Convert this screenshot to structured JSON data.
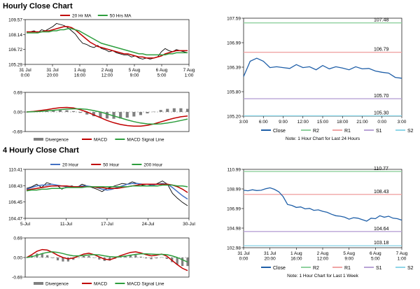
{
  "titles": {
    "hourly": "Hourly Close Chart",
    "four_hourly": "4 Hourly Close Chart"
  },
  "colors": {
    "price": "#000000",
    "ma_red": "#c00000",
    "ma_green": "#2e9e3e",
    "ma_blue": "#4472c4",
    "close_blue": "#1f5fa8",
    "r2": "#8fd19e",
    "r1": "#f0a5a5",
    "s1": "#b9a3d6",
    "s2": "#8fd6e8",
    "divergence": "#808080"
  },
  "chart_data": [
    {
      "id": "hourly-price",
      "type": "line",
      "legend": [
        "20 Hr MA",
        "50 Hrs MA"
      ],
      "ylim": [
        105.29,
        109.57
      ],
      "y_ticks": [
        "109.57",
        "108.14",
        "106.72",
        "105.29"
      ],
      "x_ticks": [
        "31 Jul\n0:00",
        "31 Jul\n20:00",
        "1 Aug\n16:00",
        "2 Aug\n12:00",
        "5 Aug\n9:00",
        "6 Aug\n5:00",
        "7 Aug\n1:00"
      ],
      "series": [
        {
          "name": "Close",
          "values": [
            108.4,
            108.4,
            108.5,
            108.3,
            108.6,
            108.5,
            108.7,
            108.9,
            109.2,
            109.1,
            109.0,
            108.8,
            108.5,
            108.2,
            107.7,
            107.3,
            107.2,
            107.0,
            106.9,
            107.1,
            106.8,
            106.7,
            106.5,
            106.6,
            106.4,
            106.3,
            106.2,
            106.2,
            106.0,
            106.1,
            105.9,
            105.8,
            105.9,
            105.8,
            105.9,
            106.0,
            106.5,
            106.8,
            106.6,
            106.5,
            106.7,
            106.6,
            106.5,
            106.4
          ]
        },
        {
          "name": "20 Hr MA",
          "values": [
            108.4,
            108.4,
            108.4,
            108.4,
            108.4,
            108.5,
            108.5,
            108.6,
            108.7,
            108.8,
            108.9,
            108.9,
            108.8,
            108.6,
            108.3,
            108.0,
            107.7,
            107.4,
            107.2,
            107.0,
            106.9,
            106.8,
            106.7,
            106.6,
            106.5,
            106.4,
            106.3,
            106.3,
            106.2,
            106.1,
            106.0,
            106.0,
            105.9,
            105.9,
            105.9,
            106.0,
            106.1,
            106.3,
            106.4,
            106.5,
            106.6,
            106.6,
            106.6,
            106.6
          ]
        },
        {
          "name": "50 Hrs MA",
          "values": [
            108.3,
            108.3,
            108.3,
            108.3,
            108.4,
            108.4,
            108.4,
            108.5,
            108.5,
            108.6,
            108.6,
            108.7,
            108.7,
            108.6,
            108.5,
            108.3,
            108.1,
            107.9,
            107.7,
            107.5,
            107.3,
            107.2,
            107.1,
            107.0,
            106.9,
            106.8,
            106.7,
            106.6,
            106.5,
            106.4,
            106.3,
            106.3,
            106.2,
            106.2,
            106.2,
            106.2,
            106.2,
            106.2,
            106.3,
            106.3,
            106.4,
            106.4,
            106.4,
            106.4
          ]
        }
      ]
    },
    {
      "id": "hourly-macd",
      "type": "line",
      "legend": [
        "Divergence",
        "MACD",
        "MACD Signal Line"
      ],
      "ylim": [
        -0.69,
        0.69
      ],
      "y_ticks": [
        "0.69",
        "0.00",
        "-0.69"
      ],
      "series": [
        {
          "name": "MACD",
          "values": [
            0.0,
            0.02,
            0.05,
            0.08,
            0.12,
            0.15,
            0.16,
            0.14,
            0.08,
            0.0,
            -0.1,
            -0.2,
            -0.3,
            -0.38,
            -0.44,
            -0.48,
            -0.5,
            -0.5,
            -0.47,
            -0.42,
            -0.35,
            -0.28,
            -0.22,
            -0.17,
            -0.14
          ]
        },
        {
          "name": "MACD Signal Line",
          "values": [
            0.0,
            0.01,
            0.02,
            0.04,
            0.06,
            0.08,
            0.1,
            0.11,
            0.11,
            0.09,
            0.05,
            0.0,
            -0.07,
            -0.14,
            -0.21,
            -0.28,
            -0.34,
            -0.39,
            -0.42,
            -0.43,
            -0.42,
            -0.39,
            -0.35,
            -0.3,
            -0.25
          ]
        },
        {
          "name": "Divergence",
          "values": [
            0.0,
            0.01,
            0.03,
            0.04,
            0.06,
            0.07,
            0.06,
            0.03,
            -0.03,
            -0.09,
            -0.15,
            -0.2,
            -0.23,
            -0.24,
            -0.23,
            -0.2,
            -0.16,
            -0.11,
            -0.05,
            0.01,
            0.07,
            0.11,
            0.13,
            0.13,
            0.11
          ]
        }
      ]
    },
    {
      "id": "hourly-levels",
      "type": "line",
      "ylim": [
        105.29,
        107.59
      ],
      "y_ticks": [
        "107.59",
        "106.99",
        "106.39",
        "105.80",
        "105.20"
      ],
      "x_ticks": [
        "3:00",
        "6:00",
        "9:00",
        "12:00",
        "15:00",
        "18:00",
        "21:00",
        "0:00",
        "3:00"
      ],
      "levels": [
        {
          "name": "R2",
          "value": 107.48,
          "label": "107.48"
        },
        {
          "name": "R1",
          "value": 106.79,
          "label": "106.79"
        },
        {
          "name": "S1",
          "value": 105.7,
          "label": "105.70"
        },
        {
          "name": "S2",
          "value": 105.3,
          "label": "105.30"
        }
      ],
      "series": [
        {
          "name": "Close",
          "values": [
            106.22,
            106.58,
            106.65,
            106.58,
            106.43,
            106.45,
            106.43,
            106.41,
            106.5,
            106.43,
            106.45,
            106.38,
            106.48,
            106.4,
            106.45,
            106.42,
            106.38,
            106.45,
            106.4,
            106.41,
            106.35,
            106.32,
            106.3,
            106.2,
            106.18
          ]
        }
      ],
      "legend": [
        "Close",
        "R2",
        "R1",
        "S1",
        "S2"
      ],
      "note": "Note: 1 Hour Chart for Last 24 Hours"
    },
    {
      "id": "four-hourly-price",
      "type": "line",
      "legend": [
        "20 Hour",
        "50 Hour",
        "200 Hour"
      ],
      "ylim": [
        104.47,
        110.41
      ],
      "y_ticks": [
        "110.41",
        "108.43",
        "106.45",
        "104.47"
      ],
      "x_ticks": [
        "5-Jul",
        "11-Jul",
        "17-Jul",
        "24-Jul",
        "30-Jul"
      ],
      "series": [
        {
          "name": "Close",
          "values": [
            108.1,
            108.3,
            108.6,
            108.2,
            108.8,
            108.6,
            108.5,
            108.0,
            108.3,
            108.4,
            108.2,
            108.6,
            108.4,
            108.2,
            108.0,
            107.7,
            108.1,
            108.3,
            108.5,
            108.7,
            108.6,
            108.9,
            108.7,
            108.5,
            108.6,
            108.4,
            108.7,
            109.0,
            108.6,
            107.5,
            106.9,
            106.4,
            106.0
          ]
        },
        {
          "name": "20 Hour",
          "values": [
            108.0,
            108.2,
            108.4,
            108.5,
            108.5,
            108.6,
            108.5,
            108.4,
            108.3,
            108.3,
            108.3,
            108.4,
            108.4,
            108.3,
            108.2,
            108.0,
            107.9,
            108.0,
            108.2,
            108.4,
            108.6,
            108.7,
            108.7,
            108.6,
            108.6,
            108.5,
            108.6,
            108.7,
            108.6,
            108.2,
            107.7,
            107.2,
            106.8
          ]
        },
        {
          "name": "50 Hour",
          "values": [
            107.9,
            108.0,
            108.1,
            108.2,
            108.3,
            108.4,
            108.4,
            108.4,
            108.4,
            108.3,
            108.3,
            108.3,
            108.3,
            108.3,
            108.2,
            108.2,
            108.1,
            108.1,
            108.1,
            108.2,
            108.3,
            108.4,
            108.5,
            108.6,
            108.6,
            108.6,
            108.6,
            108.6,
            108.6,
            108.5,
            108.3,
            108.0,
            107.6
          ]
        },
        {
          "name": "200 Hour",
          "values": [
            107.8,
            107.9,
            107.9,
            108.0,
            108.0,
            108.1,
            108.1,
            108.1,
            108.2,
            108.2,
            108.2,
            108.2,
            108.3,
            108.3,
            108.3,
            108.3,
            108.3,
            108.3,
            108.3,
            108.3,
            108.3,
            108.4,
            108.4,
            108.4,
            108.4,
            108.4,
            108.4,
            108.5,
            108.5,
            108.5,
            108.4,
            108.4,
            108.3
          ]
        }
      ]
    },
    {
      "id": "four-hourly-macd",
      "type": "line",
      "legend": [
        "Divergence",
        "MACD",
        "MACD Signal Line"
      ],
      "ylim": [
        -0.69,
        0.69
      ],
      "y_ticks": [
        "0.69",
        "0.00",
        "-0.69"
      ],
      "series": [
        {
          "name": "MACD",
          "values": [
            0.0,
            0.1,
            0.22,
            0.28,
            0.26,
            0.18,
            0.08,
            0.0,
            -0.05,
            -0.02,
            0.05,
            0.12,
            0.15,
            0.1,
            0.02,
            -0.06,
            -0.08,
            -0.02,
            0.06,
            0.12,
            0.18,
            0.2,
            0.16,
            0.1,
            0.06,
            0.08,
            0.12,
            0.05,
            -0.1,
            -0.25,
            -0.38,
            -0.46
          ]
        },
        {
          "name": "MACD Signal Line",
          "values": [
            0.0,
            0.03,
            0.08,
            0.14,
            0.18,
            0.2,
            0.18,
            0.14,
            0.09,
            0.06,
            0.06,
            0.07,
            0.09,
            0.1,
            0.09,
            0.06,
            0.03,
            0.02,
            0.03,
            0.05,
            0.08,
            0.11,
            0.13,
            0.13,
            0.12,
            0.11,
            0.11,
            0.1,
            0.06,
            0.0,
            -0.08,
            -0.16
          ]
        },
        {
          "name": "Divergence",
          "values": [
            0.0,
            0.07,
            0.14,
            0.14,
            0.08,
            -0.02,
            -0.1,
            -0.14,
            -0.14,
            -0.08,
            -0.01,
            0.05,
            0.06,
            0.0,
            -0.07,
            -0.12,
            -0.11,
            -0.04,
            0.03,
            0.07,
            0.1,
            0.09,
            0.03,
            -0.03,
            -0.06,
            -0.03,
            0.01,
            -0.05,
            -0.16,
            -0.25,
            -0.3,
            -0.3
          ]
        }
      ]
    },
    {
      "id": "four-hourly-levels",
      "type": "line",
      "ylim": [
        102.98,
        110.99
      ],
      "y_ticks": [
        "110.99",
        "108.99",
        "106.99",
        "104.98",
        "102.98"
      ],
      "x_ticks": [
        "31 Jul\n0:00",
        "31 Jul\n20:00",
        "1 Aug\n16:00",
        "2 Aug\n12:00",
        "5 Aug\n9:00",
        "6 Aug\n5:00",
        "7 Aug\n1:00"
      ],
      "levels": [
        {
          "name": "R2",
          "value": 110.77,
          "label": "110.77"
        },
        {
          "name": "R1",
          "value": 108.43,
          "label": "108.43"
        },
        {
          "name": "S1",
          "value": 104.64,
          "label": "104.64"
        },
        {
          "name": "S2",
          "value": 103.18,
          "label": "103.18"
        }
      ],
      "series": [
        {
          "name": "Close",
          "values": [
            108.85,
            108.8,
            108.9,
            108.82,
            108.85,
            109.0,
            109.1,
            108.95,
            108.7,
            108.2,
            107.4,
            107.3,
            107.1,
            107.15,
            106.95,
            107.0,
            106.8,
            106.85,
            106.7,
            106.6,
            106.4,
            106.25,
            106.2,
            106.1,
            105.9,
            106.05,
            106.0,
            105.85,
            105.7,
            106.0,
            105.95,
            106.25,
            106.1,
            106.2,
            106.0,
            105.95,
            105.8
          ]
        }
      ],
      "legend": [
        "Close",
        "R2",
        "R1",
        "S1",
        "S2"
      ],
      "note": "Note: 1 Hour Chart for Last 1 Week"
    }
  ]
}
